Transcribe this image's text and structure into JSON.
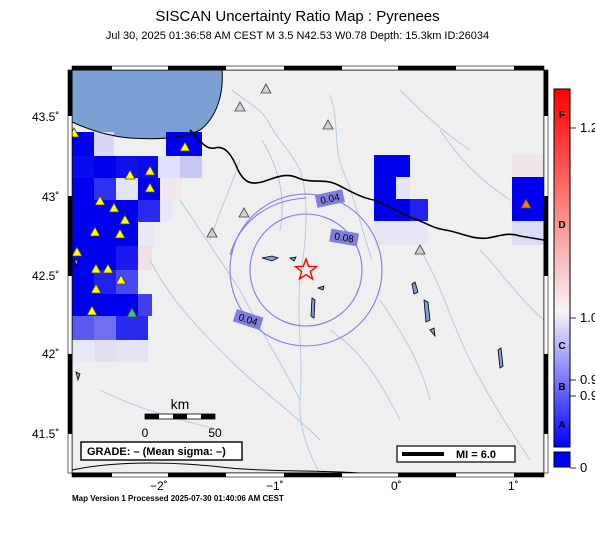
{
  "title": "SISCAN Uncertainty Ratio Map : Pyrenees",
  "subtitle": "Jul 30, 2025 01:36:58 AM CEST   M 3.5   N42.53 W0.78   Depth: 15.3km   ID:26034",
  "footer": "Map Version 1 Processed 2025-07-30 01:40:06 AM CEST",
  "axes": {
    "lat_ticks": [
      {
        "v": 43.5,
        "label": "43.5˚"
      },
      {
        "v": 43,
        "label": "43˚"
      },
      {
        "v": 42.5,
        "label": "42.5˚"
      },
      {
        "v": 42,
        "label": "42˚"
      },
      {
        "v": 41.5,
        "label": "41.5˚"
      }
    ],
    "lon_ticks": [
      {
        "v": -2,
        "label": "−2˚"
      },
      {
        "v": -1,
        "label": "−1˚"
      },
      {
        "v": 0,
        "label": "0˚"
      },
      {
        "v": 1,
        "label": "1˚"
      }
    ]
  },
  "contours": [
    {
      "label": "0.04"
    },
    {
      "label": "0.08"
    },
    {
      "label": "0.04"
    }
  ],
  "scalebar": {
    "unit": "km",
    "ticks": [
      "0",
      "50"
    ]
  },
  "grade_box": "GRADE: – (Mean sigma: –)",
  "mi_box": "MI = 6.0",
  "colorbar": {
    "letters": [
      "F",
      "D",
      "C",
      "B",
      "A"
    ],
    "values": [
      "1.2",
      "1.0",
      "0.9",
      "0.9",
      "0"
    ],
    "colors": {
      "high": "#ff0000",
      "mid": "#f5f5f5",
      "low": "#0000ff"
    }
  },
  "epicenter": {
    "lat": 42.53,
    "lon": -0.78,
    "color": "#ff0000"
  },
  "stations_note_colors": {
    "yellow": "#ffff00",
    "green": "#33cc66",
    "orange": "#ff7a1a",
    "gray": "#cccccc"
  }
}
